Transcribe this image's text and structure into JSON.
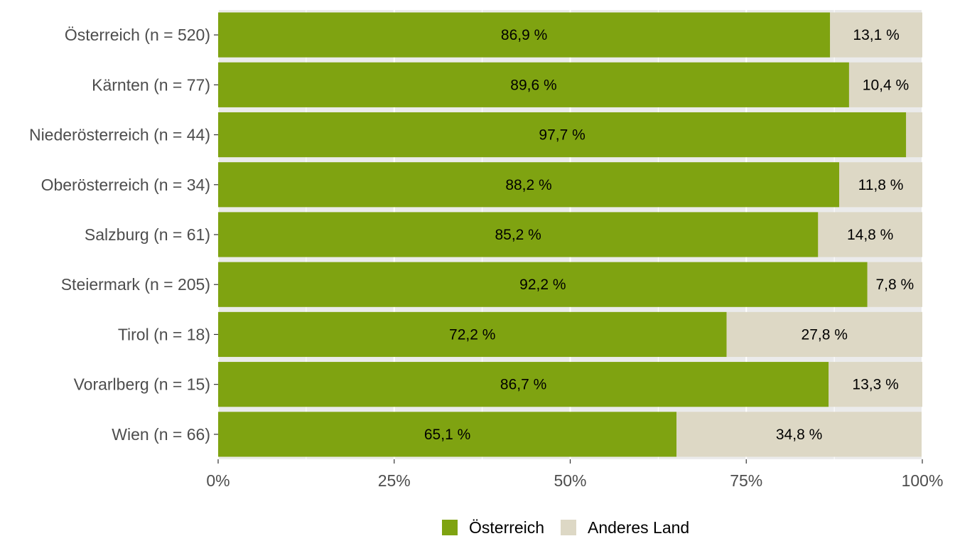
{
  "chart_data": {
    "type": "bar",
    "orientation": "horizontal",
    "stacked": true,
    "categories": [
      "Österreich (n = 520)",
      "Kärnten (n = 77)",
      "Niederösterreich (n = 44)",
      "Oberösterreich (n = 34)",
      "Salzburg (n = 61)",
      "Steiermark (n = 205)",
      "Tirol (n = 18)",
      "Vorarlberg (n = 15)",
      "Wien (n = 66)"
    ],
    "series": [
      {
        "name": "Österreich",
        "color": "#7fa311",
        "values": [
          86.9,
          89.6,
          97.7,
          88.2,
          85.2,
          92.2,
          72.2,
          86.7,
          65.1
        ],
        "labels": [
          "86,9 %",
          "89,6 %",
          "97,7 %",
          "88,2 %",
          "85,2 %",
          "92,2 %",
          "72,2 %",
          "86,7 %",
          "65,1 %"
        ]
      },
      {
        "name": "Anderes Land",
        "color": "#ddd8c5",
        "values": [
          13.1,
          10.4,
          2.3,
          11.8,
          14.8,
          7.8,
          27.8,
          13.3,
          34.8
        ],
        "labels": [
          "13,1 %",
          "10,4 %",
          "",
          "11,8 %",
          "14,8 %",
          "7,8 %",
          "27,8 %",
          "13,3 %",
          "34,8 %"
        ]
      }
    ],
    "xlim": [
      0,
      100
    ],
    "xticks": [
      0,
      25,
      50,
      75,
      100
    ],
    "xtick_labels": [
      "0%",
      "25%",
      "50%",
      "75%",
      "100%"
    ],
    "title": "",
    "xlabel": "",
    "ylabel": "",
    "grid": true,
    "panel_background": "#ebebeb",
    "legend_position": "bottom"
  }
}
